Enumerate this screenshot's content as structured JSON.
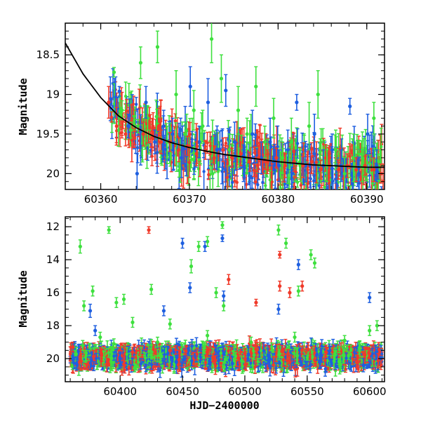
{
  "figure": {
    "xlabel": "HJD−2400000"
  },
  "chart_data": [
    {
      "type": "scatter",
      "panel": "top",
      "title": "",
      "xlabel": "",
      "ylabel": "Magnitude",
      "xlim": [
        60356,
        60392
      ],
      "ylim": [
        20.2,
        18.1
      ],
      "y_inverted": true,
      "xticks": [
        60360,
        60370,
        60380,
        60390
      ],
      "yticks": [
        18.5,
        19,
        19.5,
        20
      ],
      "ytick_labels": [
        "18.5",
        "19",
        "19.5",
        "20"
      ],
      "model_curve": {
        "description": "decaying magnitude curve",
        "points": [
          [
            60356,
            18.35
          ],
          [
            60358,
            18.74
          ],
          [
            60360,
            19.04
          ],
          [
            60362,
            19.27
          ],
          [
            60364,
            19.42
          ],
          [
            60366,
            19.53
          ],
          [
            60368,
            19.61
          ],
          [
            60370,
            19.67
          ],
          [
            60372,
            19.72
          ],
          [
            60374,
            19.76
          ],
          [
            60376,
            19.79
          ],
          [
            60378,
            19.82
          ],
          [
            60380,
            19.85
          ],
          [
            60382,
            19.87
          ],
          [
            60384,
            19.89
          ],
          [
            60386,
            19.9
          ],
          [
            60388,
            19.91
          ],
          [
            60390,
            19.92
          ],
          [
            60392,
            19.92
          ]
        ]
      },
      "series": [
        {
          "color": "#3ee03e",
          "points": [
            [
              60361.5,
              18.72,
              0.06
            ],
            [
              60362.4,
              19.2,
              0.12
            ],
            [
              60363.4,
              19.45,
              0.1
            ],
            [
              60364.5,
              18.6,
              0.2
            ],
            [
              60365.3,
              19.3,
              0.15
            ],
            [
              60366.4,
              18.4,
              0.2
            ],
            [
              60367.5,
              19.6,
              0.2
            ],
            [
              60368.5,
              19.0,
              0.3
            ],
            [
              60369.5,
              19.5,
              0.15
            ],
            [
              60370.5,
              19.2,
              0.25
            ],
            [
              60371.5,
              19.4,
              0.2
            ],
            [
              60372.5,
              18.3,
              0.3
            ],
            [
              60373.6,
              18.8,
              0.3
            ],
            [
              60374.5,
              19.7,
              0.2
            ],
            [
              60375.5,
              19.2,
              0.3
            ],
            [
              60376.5,
              19.5,
              0.2
            ],
            [
              60377.5,
              18.9,
              0.25
            ],
            [
              60378.5,
              19.6,
              0.2
            ],
            [
              60379.5,
              19.3,
              0.25
            ],
            [
              60380.5,
              19.8,
              0.2
            ],
            [
              60381.5,
              19.6,
              0.3
            ],
            [
              60382.5,
              19.9,
              0.2
            ],
            [
              60383.5,
              19.4,
              0.3
            ],
            [
              60384.5,
              19.0,
              0.3
            ],
            [
              60385.5,
              19.9,
              0.2
            ],
            [
              60386.5,
              19.7,
              0.25
            ],
            [
              60387.5,
              20.0,
              0.2
            ],
            [
              60388.5,
              19.8,
              0.3
            ],
            [
              60389.5,
              19.9,
              0.2
            ],
            [
              60390.8,
              19.3,
              0.2
            ],
            [
              60391.5,
              19.9,
              0.2
            ]
          ]
        },
        {
          "color": "#1e5fe0",
          "points": [
            [
              60362.1,
              18.96,
              0.06
            ],
            [
              60363.1,
              19.4,
              0.15
            ],
            [
              60364.1,
              20.0,
              0.25
            ],
            [
              60365.1,
              19.1,
              0.2
            ],
            [
              60366.1,
              19.6,
              0.15
            ],
            [
              60367.1,
              19.4,
              0.2
            ],
            [
              60368.1,
              19.5,
              0.2
            ],
            [
              60369.1,
              19.8,
              0.25
            ],
            [
              60370.1,
              18.9,
              0.25
            ],
            [
              60371.1,
              19.6,
              0.2
            ],
            [
              60372.1,
              19.1,
              0.3
            ],
            [
              60373.1,
              19.7,
              0.25
            ],
            [
              60374.1,
              18.95,
              0.2
            ],
            [
              60375.1,
              19.6,
              0.25
            ],
            [
              60376.1,
              19.9,
              0.2
            ],
            [
              60377.1,
              19.5,
              0.3
            ],
            [
              60378.1,
              19.8,
              0.2
            ],
            [
              60379.1,
              19.6,
              0.3
            ],
            [
              60380.1,
              19.9,
              0.2
            ],
            [
              60381.1,
              19.7,
              0.25
            ],
            [
              60382.1,
              19.1,
              0.1
            ],
            [
              60383.1,
              19.9,
              0.2
            ],
            [
              60384.1,
              19.5,
              0.25
            ],
            [
              60385.1,
              19.9,
              0.2
            ],
            [
              60386.1,
              19.7,
              0.2
            ],
            [
              60387.1,
              19.9,
              0.2
            ],
            [
              60388.1,
              19.15,
              0.1
            ],
            [
              60389.1,
              20.0,
              0.2
            ],
            [
              60390.1,
              19.5,
              0.25
            ],
            [
              60391.1,
              19.9,
              0.2
            ]
          ]
        },
        {
          "color": "#f03a2a",
          "points": [
            [
              60360.9,
              19.1,
              0.2
            ],
            [
              60361.8,
              19.4,
              0.15
            ],
            [
              60362.8,
              19.5,
              0.15
            ],
            [
              60363.8,
              19.55,
              0.12
            ],
            [
              60364.8,
              19.5,
              0.15
            ],
            [
              60365.8,
              19.55,
              0.12
            ],
            [
              60366.8,
              19.6,
              0.15
            ],
            [
              60367.8,
              19.6,
              0.12
            ],
            [
              60368.8,
              19.7,
              0.15
            ],
            [
              60369.8,
              19.65,
              0.12
            ],
            [
              60370.8,
              19.75,
              0.15
            ],
            [
              60371.8,
              19.7,
              0.12
            ],
            [
              60372.8,
              19.8,
              0.15
            ],
            [
              60373.8,
              19.7,
              0.15
            ],
            [
              60374.8,
              19.8,
              0.12
            ],
            [
              60375.8,
              19.75,
              0.15
            ],
            [
              60376.8,
              19.85,
              0.12
            ],
            [
              60377.8,
              19.8,
              0.15
            ],
            [
              60378.8,
              19.85,
              0.15
            ],
            [
              60379.8,
              19.8,
              0.12
            ],
            [
              60380.8,
              19.9,
              0.15
            ],
            [
              60381.8,
              19.85,
              0.12
            ],
            [
              60382.8,
              19.9,
              0.15
            ],
            [
              60383.8,
              19.85,
              0.15
            ],
            [
              60384.8,
              19.95,
              0.12
            ],
            [
              60385.8,
              19.9,
              0.15
            ],
            [
              60386.8,
              19.95,
              0.12
            ],
            [
              60387.8,
              19.9,
              0.15
            ],
            [
              60388.8,
              19.95,
              0.15
            ],
            [
              60389.8,
              19.9,
              0.12
            ],
            [
              60390.8,
              19.95,
              0.15
            ],
            [
              60391.6,
              20.0,
              0.12
            ]
          ]
        }
      ]
    },
    {
      "type": "scatter",
      "panel": "bottom",
      "title": "",
      "xlabel": "HJD−2400000",
      "ylabel": "Magnitude",
      "xlim": [
        60356,
        60612
      ],
      "ylim": [
        21.4,
        11.4
      ],
      "y_inverted": true,
      "xticks": [
        60400,
        60450,
        60500,
        60550,
        60600
      ],
      "yticks": [
        12,
        14,
        16,
        18,
        20
      ],
      "ytick_labels": [
        "12",
        "14",
        "16",
        "18",
        "20"
      ],
      "series": [
        {
          "color": "#3ee03e",
          "points": [
            [
              60368,
              13.2,
              0.4
            ],
            [
              60371,
              16.8,
              0.3
            ],
            [
              60378,
              15.9,
              0.3
            ],
            [
              60384,
              18.7,
              0.3
            ],
            [
              60391,
              12.2,
              0.2
            ],
            [
              60397,
              16.6,
              0.3
            ],
            [
              60403,
              16.4,
              0.3
            ],
            [
              60410,
              17.8,
              0.3
            ],
            [
              60425,
              15.8,
              0.3
            ],
            [
              60440,
              17.9,
              0.3
            ],
            [
              60457,
              14.4,
              0.4
            ],
            [
              60463,
              13.2,
              0.3
            ],
            [
              60470,
              12.9,
              0.3
            ],
            [
              60477,
              16.0,
              0.3
            ],
            [
              60482,
              11.9,
              0.2
            ],
            [
              60483,
              16.8,
              0.3
            ],
            [
              60527,
              12.2,
              0.3
            ],
            [
              60533,
              13.0,
              0.3
            ],
            [
              60543,
              15.9,
              0.3
            ],
            [
              60553,
              13.7,
              0.3
            ],
            [
              60556,
              14.2,
              0.3
            ],
            [
              60600,
              18.3,
              0.3
            ],
            [
              60606,
              18.0,
              0.3
            ],
            [
              60370,
              19.2,
              0.3
            ],
            [
              60395,
              19.1,
              0.3
            ],
            [
              60430,
              19.0,
              0.3
            ],
            [
              60470,
              18.6,
              0.3
            ],
            [
              60505,
              19.0,
              0.3
            ],
            [
              60540,
              18.7,
              0.3
            ],
            [
              60580,
              18.9,
              0.3
            ]
          ]
        },
        {
          "color": "#1e5fe0",
          "points": [
            [
              60376,
              17.1,
              0.4
            ],
            [
              60380,
              18.3,
              0.3
            ],
            [
              60435,
              17.1,
              0.3
            ],
            [
              60450,
              13.0,
              0.3
            ],
            [
              60456,
              15.7,
              0.3
            ],
            [
              60468,
              13.2,
              0.3
            ],
            [
              60482,
              12.7,
              0.2
            ],
            [
              60483,
              16.2,
              0.3
            ],
            [
              60527,
              17.0,
              0.3
            ],
            [
              60543,
              14.3,
              0.3
            ],
            [
              60600,
              16.3,
              0.3
            ],
            [
              60365,
              20.3,
              0.4
            ],
            [
              60400,
              20.0,
              0.4
            ],
            [
              60445,
              20.2,
              0.4
            ],
            [
              60490,
              20.3,
              0.4
            ],
            [
              60520,
              20.0,
              0.4
            ],
            [
              60560,
              20.2,
              0.4
            ],
            [
              60595,
              20.4,
              0.4
            ]
          ]
        },
        {
          "color": "#f03a2a",
          "points": [
            [
              60423,
              12.2,
              0.2
            ],
            [
              60487,
              15.2,
              0.3
            ],
            [
              60528,
              13.7,
              0.2
            ],
            [
              60528,
              15.6,
              0.3
            ],
            [
              60536,
              16.0,
              0.3
            ],
            [
              60546,
              15.6,
              0.3
            ],
            [
              60509,
              16.6,
              0.2
            ],
            [
              60362,
              19.3,
              0.3
            ],
            [
              60385,
              19.7,
              0.3
            ],
            [
              60410,
              19.6,
              0.3
            ],
            [
              60440,
              19.5,
              0.3
            ],
            [
              60470,
              19.6,
              0.3
            ],
            [
              60500,
              19.7,
              0.3
            ],
            [
              60530,
              19.5,
              0.3
            ],
            [
              60565,
              19.6,
              0.3
            ],
            [
              60600,
              19.7,
              0.3
            ]
          ]
        }
      ],
      "band": {
        "description": "dense cloud of measurements near quiescence",
        "center": 19.9,
        "spread": 0.45
      }
    }
  ]
}
